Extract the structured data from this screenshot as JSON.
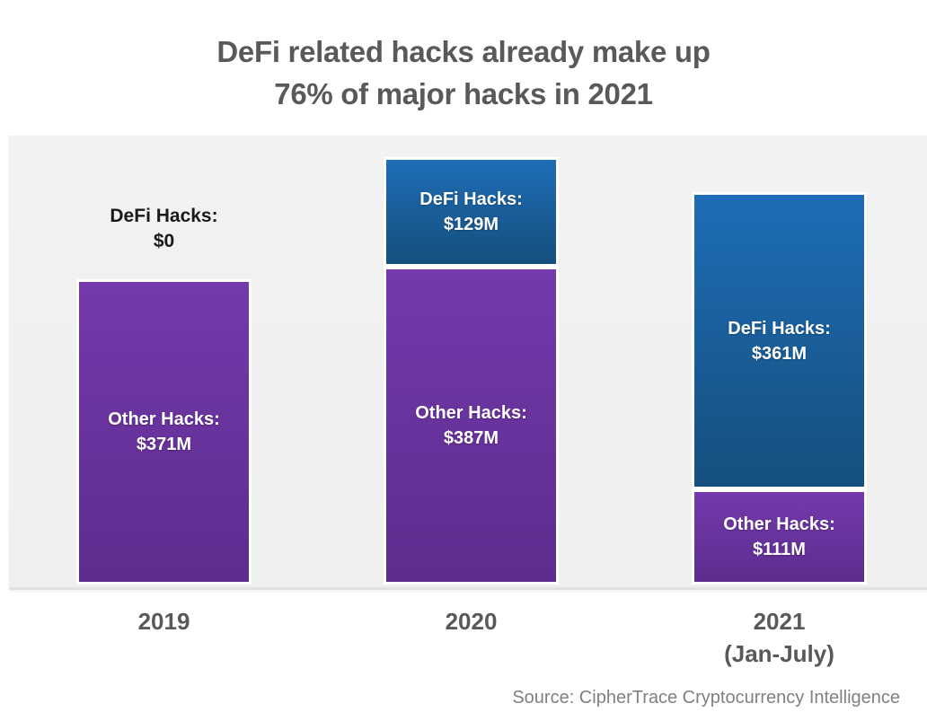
{
  "chart_data": {
    "type": "bar",
    "stacked": true,
    "title_lines": [
      "DeFi related hacks already make up",
      "76% of major hacks in 2021"
    ],
    "title": "DeFi related hacks already make up 76% of major hacks in 2021",
    "categories": [
      "2019",
      "2020",
      "2021 (Jan-July)"
    ],
    "category_label_lines": [
      [
        "2019"
      ],
      [
        "2020"
      ],
      [
        "2021",
        "(Jan-July)"
      ]
    ],
    "unit": "USD millions",
    "series": [
      {
        "name": "DeFi Hacks",
        "stack_position": "top",
        "values": [
          0,
          129,
          361
        ],
        "value_labels": [
          "$0",
          "$129M",
          "$361M"
        ],
        "label_prefix": "DeFi Hacks:",
        "color_top": "#1e6db6",
        "color_bottom": "#154f7e"
      },
      {
        "name": "Other Hacks",
        "stack_position": "bottom",
        "values": [
          371,
          387,
          111
        ],
        "value_labels": [
          "$371M",
          "$387M",
          "$111M"
        ],
        "label_prefix": "Other Hacks:",
        "color_top": "#7439ac",
        "color_bottom": "#5c2d8e"
      }
    ],
    "totals": [
      371,
      516,
      472
    ],
    "ylim": [
      0,
      560
    ],
    "grid": false,
    "legend": "none",
    "value_label_placement": "inside-segment; outside-above-bar when value is 0",
    "source": "Source: CipherTrace Cryptocurrency Intelligence"
  },
  "colors": {
    "title_text": "#595959",
    "axis_label_text": "#595959",
    "outside_label_text": "#1a1a1a",
    "in_bar_text": "#ffffff",
    "source_text": "#808080",
    "plot_background": "#f0f0f0",
    "bar_border": "#ffffff",
    "page_background": "#ffffff"
  }
}
